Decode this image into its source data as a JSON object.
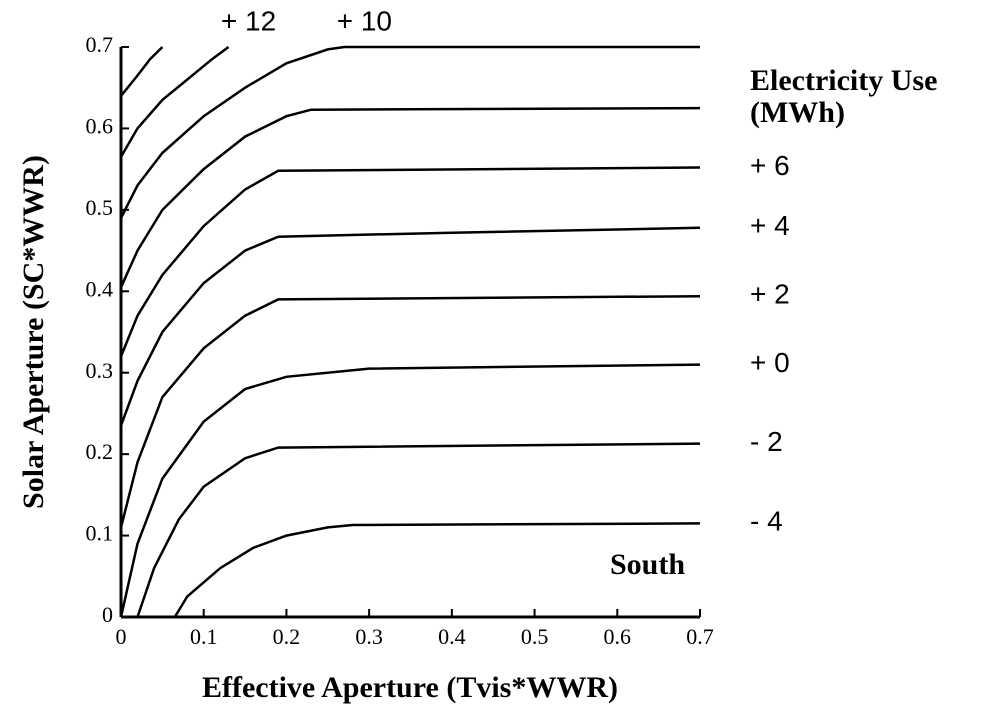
{
  "chart_data": {
    "type": "contour",
    "x_label": "Effective Aperture (Tvis*WWR)",
    "y_label": "Solar Aperture (SC*WWR)",
    "legend_title": [
      "Electricity Use",
      "(MWh)"
    ],
    "annotation": "South",
    "xlim": [
      0,
      0.7
    ],
    "ylim": [
      0,
      0.7
    ],
    "xticks": [
      0,
      0.1,
      0.2,
      0.3,
      0.4,
      0.5,
      0.6,
      0.7
    ],
    "yticks": [
      0,
      0.1,
      0.2,
      0.3,
      0.4,
      0.5,
      0.6,
      0.7
    ],
    "series": [
      {
        "color": "#000000",
        "x": [
          0,
          0.02,
          0.035,
          0.05
        ],
        "values": [
          0.64,
          0.665,
          0.685,
          0.7
        ]
      },
      {
        "name": "+ 12",
        "color": "#000000",
        "x": [
          0,
          0.02,
          0.05,
          0.08,
          0.11,
          0.13
        ],
        "values": [
          0.565,
          0.6,
          0.635,
          0.66,
          0.685,
          0.7
        ]
      },
      {
        "name": "+ 10",
        "color": "#000000",
        "x": [
          0,
          0.02,
          0.05,
          0.1,
          0.15,
          0.2,
          0.25,
          0.27,
          0.7
        ],
        "values": [
          0.49,
          0.53,
          0.57,
          0.615,
          0.65,
          0.68,
          0.697,
          0.7,
          0.7
        ]
      },
      {
        "color": "#000000",
        "x": [
          0,
          0.02,
          0.05,
          0.1,
          0.15,
          0.2,
          0.23,
          0.7
        ],
        "values": [
          0.405,
          0.45,
          0.5,
          0.55,
          0.59,
          0.615,
          0.623,
          0.625
        ]
      },
      {
        "name": "+ 6",
        "color": "#000000",
        "x": [
          0,
          0.02,
          0.05,
          0.1,
          0.15,
          0.19,
          0.7
        ],
        "values": [
          0.32,
          0.37,
          0.42,
          0.48,
          0.525,
          0.548,
          0.552
        ]
      },
      {
        "name": "+ 4",
        "color": "#000000",
        "x": [
          0,
          0.02,
          0.05,
          0.1,
          0.15,
          0.19,
          0.4,
          0.7
        ],
        "values": [
          0.235,
          0.29,
          0.35,
          0.41,
          0.45,
          0.467,
          0.472,
          0.478
        ]
      },
      {
        "name": "+ 2",
        "color": "#000000",
        "x": [
          0,
          0.02,
          0.05,
          0.1,
          0.15,
          0.19,
          0.7
        ],
        "values": [
          0.11,
          0.19,
          0.27,
          0.33,
          0.37,
          0.39,
          0.394
        ]
      },
      {
        "name": "+ 0",
        "color": "#000000",
        "x": [
          0,
          0.02,
          0.05,
          0.1,
          0.15,
          0.2,
          0.3,
          0.7
        ],
        "values": [
          0,
          0.09,
          0.17,
          0.24,
          0.28,
          0.295,
          0.305,
          0.31
        ]
      },
      {
        "name": "- 2",
        "color": "#000000",
        "x": [
          0.02,
          0.04,
          0.07,
          0.1,
          0.15,
          0.19,
          0.7
        ],
        "values": [
          0,
          0.06,
          0.12,
          0.16,
          0.195,
          0.208,
          0.213
        ]
      },
      {
        "name": "- 4",
        "color": "#000000",
        "x": [
          0.065,
          0.08,
          0.12,
          0.16,
          0.2,
          0.25,
          0.28,
          0.7
        ],
        "values": [
          0,
          0.025,
          0.06,
          0.085,
          0.1,
          0.11,
          0.113,
          0.115
        ]
      }
    ]
  }
}
